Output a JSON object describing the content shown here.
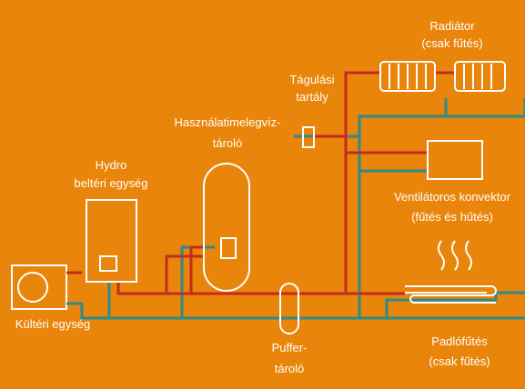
{
  "nodes": [
    {
      "label": [
        "Radiátor",
        "(csak fűtés)"
      ]
    },
    {
      "label": [
        "Tágulási",
        "tartály"
      ]
    },
    {
      "label": [
        "Használatimelegvíz-",
        "tároló"
      ]
    },
    {
      "label": [
        "Hydro",
        "beltéri egység"
      ]
    },
    {
      "label": [
        "Ventilátoros konvektor",
        "(fűtés és hűtés)"
      ]
    },
    {
      "label": [
        "Kültéri egység"
      ]
    },
    {
      "label": [
        "Puffer-",
        "tároló"
      ]
    },
    {
      "label": [
        "Padlófűtés",
        "(csak fűtés)"
      ]
    }
  ]
}
